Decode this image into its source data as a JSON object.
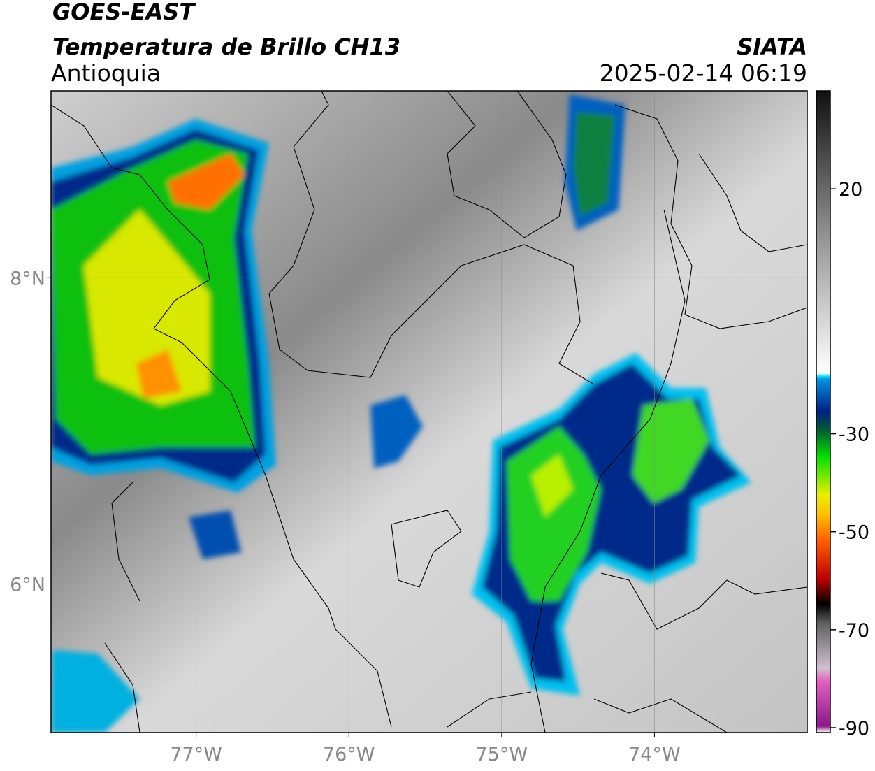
{
  "header": {
    "title": "GOES-EAST",
    "subtitle": "Temperatura de Brillo CH13",
    "region": "Antioquia",
    "source": "SIATA",
    "datetime": "2025-02-14 06:19"
  },
  "map": {
    "lon_lim": [
      -77.95,
      -73.0
    ],
    "lat_lim": [
      5.03,
      9.22
    ],
    "lon_ticks": [
      {
        "value": -77,
        "label": "77°W"
      },
      {
        "value": -76,
        "label": "76°W"
      },
      {
        "value": -75,
        "label": "75°W"
      },
      {
        "value": -74,
        "label": "74°W"
      }
    ],
    "lat_ticks": [
      {
        "value": 8,
        "label": "8°N"
      },
      {
        "value": 6,
        "label": "6°N"
      }
    ],
    "grid": true
  },
  "colorbar": {
    "lim": [
      -91,
      40
    ],
    "ticks": [
      20,
      -30,
      -50,
      -70,
      -90
    ]
  }
}
